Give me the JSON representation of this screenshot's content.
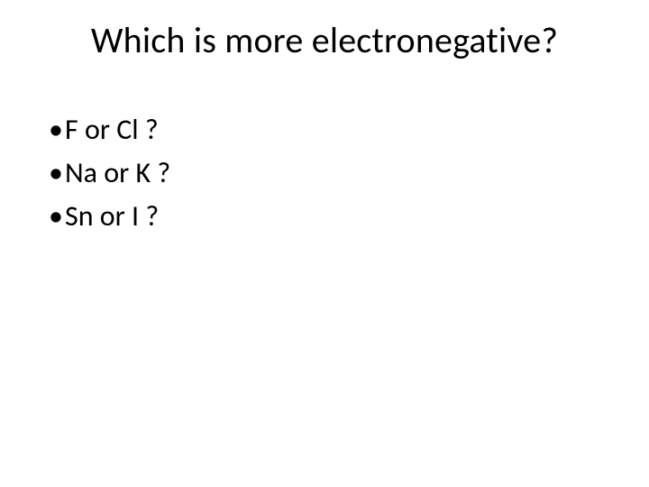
{
  "slide": {
    "background_color": "#ffffff",
    "text_color": "#000000",
    "title": {
      "text": "Which is more electronegative?",
      "fontsize": 40,
      "font_weight": 400,
      "align": "center"
    },
    "bullets": {
      "fontsize": 32,
      "bullet_char": "•",
      "items": [
        "F or Cl  ?",
        "Na or K  ?",
        "Sn or I ?"
      ]
    }
  }
}
